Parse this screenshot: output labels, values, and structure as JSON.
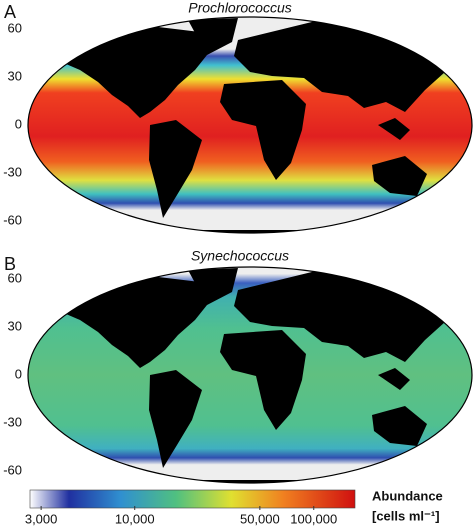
{
  "panels": [
    {
      "label": "A",
      "title": "Prochlorococcus",
      "lat_ticks": [
        60,
        30,
        0,
        -30,
        -60
      ]
    },
    {
      "label": "B",
      "title": "Synechococcus",
      "lat_ticks": [
        60,
        30,
        0,
        -30,
        -60
      ]
    }
  ],
  "colorbar": {
    "title": "Abundance",
    "unit": "[cells ml⁻¹]",
    "log": true,
    "lim": [
      2600,
      170000
    ],
    "ticks": [
      {
        "value": 3000,
        "label": "3,000"
      },
      {
        "value": 10000,
        "label": "10,000"
      },
      {
        "value": 50000,
        "label": "50,000"
      },
      {
        "value": 100000,
        "label": "100,000"
      }
    ]
  }
}
